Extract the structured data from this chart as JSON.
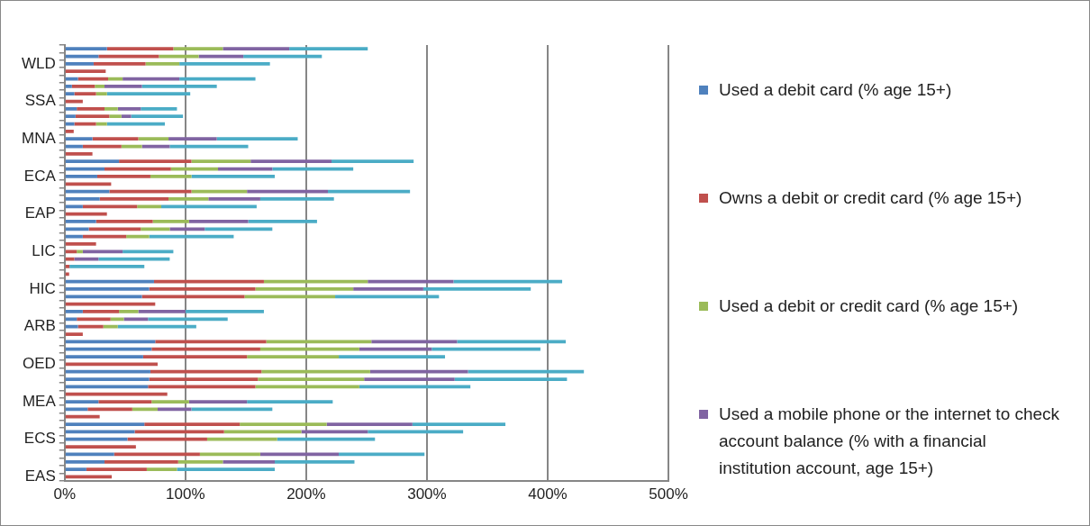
{
  "chart_data": {
    "type": "bar",
    "orientation": "horizontal",
    "stacked": true,
    "categories": [
      null,
      null,
      "WLD",
      null,
      null,
      null,
      null,
      "SSA",
      null,
      null,
      null,
      null,
      "MNA",
      null,
      null,
      null,
      null,
      "ECA",
      null,
      null,
      null,
      null,
      "EAP",
      null,
      null,
      null,
      null,
      "LIC",
      null,
      null,
      null,
      null,
      "HIC",
      null,
      null,
      null,
      null,
      "ARB",
      null,
      null,
      null,
      null,
      "OED",
      null,
      null,
      null,
      null,
      "MEA",
      null,
      null,
      null,
      null,
      "ECS",
      null,
      null,
      null,
      null,
      "EAS"
    ],
    "series": [
      {
        "name": "Used a debit card (% age 15+)",
        "color": "#4f81bd",
        "values": [
          35,
          28,
          24,
          null,
          11,
          6,
          8,
          null,
          10,
          9,
          8,
          null,
          23,
          15,
          null,
          45,
          33,
          27,
          null,
          37,
          29,
          15,
          null,
          26,
          20,
          15,
          null,
          null,
          null,
          null,
          null,
          74,
          70,
          64,
          null,
          15,
          10,
          11,
          null,
          75,
          72,
          65,
          null,
          71,
          70,
          69,
          null,
          28,
          19,
          null,
          66,
          58,
          52,
          null,
          41,
          33,
          18,
          null
        ]
      },
      {
        "name": "Owns a debit or credit card (% age 15+)",
        "color": "#c0504d",
        "values": [
          55,
          50,
          43,
          34,
          25,
          19,
          18,
          15,
          23,
          28,
          18,
          7.5,
          38,
          32,
          23,
          60,
          55,
          44,
          38.5,
          68,
          57,
          45,
          35,
          47,
          43,
          36,
          26,
          10,
          8,
          4,
          3.7,
          91,
          88,
          85,
          75,
          30,
          28,
          21,
          15,
          92,
          90,
          86,
          77,
          92,
          90,
          89,
          85,
          44,
          37,
          29,
          79,
          74,
          66,
          59,
          71,
          61,
          50,
          39
        ]
      },
      {
        "name": "Used a debit or credit card (% age 15+)",
        "color": "#9bbb59",
        "values": [
          41,
          33,
          28,
          null,
          12,
          8,
          9,
          null,
          11,
          10,
          9,
          null,
          25,
          17,
          null,
          49,
          39,
          34,
          null,
          46,
          33,
          20,
          null,
          30,
          24,
          19,
          null,
          5,
          null,
          null,
          null,
          86,
          81,
          75,
          null,
          16,
          11,
          12,
          null,
          87,
          82,
          76,
          null,
          90,
          88,
          86,
          null,
          31,
          21,
          null,
          72,
          64,
          58,
          null,
          50,
          37,
          25,
          null
        ]
      },
      {
        "name": "Used a mobile phone or the internet to check account balance (% with a financial institution account, age 15+)",
        "color": "#8064a2",
        "values": [
          55,
          37,
          null,
          null,
          47,
          31,
          null,
          null,
          19,
          8,
          null,
          null,
          40,
          23,
          null,
          67,
          45,
          null,
          null,
          67,
          43,
          null,
          null,
          49,
          29,
          null,
          null,
          33,
          20,
          null,
          null,
          71,
          58,
          null,
          null,
          39,
          20,
          null,
          null,
          71,
          60,
          null,
          null,
          81,
          75,
          null,
          null,
          48,
          28,
          null,
          71,
          55,
          null,
          null,
          65,
          43,
          null,
          null
        ]
      },
      {
        "color": "#4bacc6",
        "values": [
          65,
          65,
          75,
          null,
          63,
          62,
          69,
          null,
          30,
          43,
          48,
          null,
          67,
          65,
          null,
          68,
          67,
          69,
          null,
          68,
          61,
          79,
          null,
          57,
          56,
          70,
          null,
          42,
          59,
          62,
          null,
          90,
          89,
          86,
          null,
          65,
          66,
          65,
          null,
          90,
          90,
          88,
          null,
          96,
          93,
          92,
          null,
          71,
          67,
          null,
          77,
          79,
          81,
          null,
          71,
          66,
          81,
          null
        ]
      }
    ],
    "xlim": [
      0,
      500
    ],
    "xticks": [
      {
        "value": 0,
        "label": "0%"
      },
      {
        "value": 100,
        "label": "100%"
      },
      {
        "value": 200,
        "label": "200%"
      },
      {
        "value": 300,
        "label": "300%"
      },
      {
        "value": 400,
        "label": "400%"
      },
      {
        "value": 500,
        "label": "500%"
      }
    ],
    "grid": "x",
    "legend": "right"
  }
}
